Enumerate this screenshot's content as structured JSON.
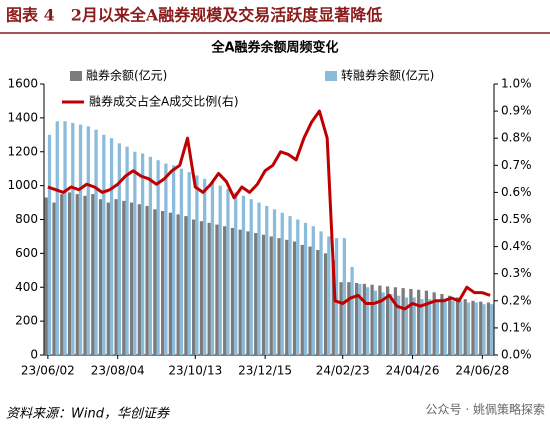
{
  "header": {
    "title": "图表 4　2月以来全A融券规模及交易活跃度显著降低"
  },
  "chart_data": {
    "type": "bar_line",
    "title": "全A融券余额周频变化",
    "categories": [
      "23/06/02",
      null,
      null,
      null,
      null,
      null,
      null,
      null,
      null,
      "23/08/04",
      null,
      null,
      null,
      null,
      null,
      null,
      null,
      null,
      null,
      "23/10/13",
      null,
      null,
      null,
      null,
      null,
      null,
      null,
      null,
      "23/12/15",
      null,
      null,
      null,
      null,
      null,
      null,
      null,
      null,
      null,
      "24/02/23",
      null,
      null,
      null,
      null,
      null,
      null,
      null,
      null,
      "24/04/26",
      null,
      null,
      null,
      null,
      null,
      null,
      null,
      null,
      "24/06/28",
      null
    ],
    "series": [
      {
        "name": "融券余额(亿元)",
        "color": "#7b7b7b",
        "kind": "bar",
        "values": [
          930,
          900,
          950,
          960,
          950,
          940,
          950,
          920,
          900,
          920,
          910,
          900,
          890,
          880,
          860,
          850,
          840,
          830,
          820,
          800,
          790,
          780,
          770,
          760,
          750,
          740,
          730,
          720,
          710,
          700,
          690,
          680,
          670,
          650,
          640,
          620,
          600,
          560,
          430,
          430,
          425,
          420,
          415,
          410,
          405,
          400,
          395,
          390,
          385,
          380,
          370,
          360,
          350,
          340,
          330,
          320,
          315,
          310
        ]
      },
      {
        "name": "转融券余额(亿元)",
        "color": "#8bbbdb",
        "kind": "bar",
        "values": [
          1300,
          1380,
          1380,
          1370,
          1360,
          1350,
          1330,
          1300,
          1280,
          1250,
          1230,
          1200,
          1190,
          1170,
          1150,
          1130,
          1120,
          1100,
          1080,
          1060,
          1040,
          1020,
          1000,
          980,
          960,
          940,
          920,
          900,
          880,
          860,
          840,
          820,
          800,
          780,
          760,
          730,
          700,
          690,
          690,
          520,
          420,
          400,
          380,
          370,
          360,
          350,
          340,
          340,
          330,
          330,
          320,
          320,
          320,
          320,
          310,
          310,
          300,
          300
        ]
      },
      {
        "name": "融券成交占全A成交比例(右)",
        "color": "#c00000",
        "kind": "line",
        "axis": "y2",
        "values": [
          0.62,
          0.61,
          0.6,
          0.62,
          0.61,
          0.63,
          0.62,
          0.6,
          0.61,
          0.63,
          0.66,
          0.68,
          0.66,
          0.65,
          0.63,
          0.65,
          0.68,
          0.7,
          0.8,
          0.62,
          0.6,
          0.63,
          0.67,
          0.64,
          0.58,
          0.62,
          0.6,
          0.63,
          0.68,
          0.7,
          0.75,
          0.74,
          0.72,
          0.8,
          0.86,
          0.9,
          0.8,
          0.2,
          0.19,
          0.21,
          0.22,
          0.19,
          0.19,
          0.2,
          0.22,
          0.18,
          0.17,
          0.19,
          0.18,
          0.19,
          0.2,
          0.2,
          0.21,
          0.2,
          0.25,
          0.23,
          0.23,
          0.22
        ]
      }
    ],
    "ylim": [
      0,
      1600
    ],
    "yticks": [
      0,
      200,
      400,
      600,
      800,
      1000,
      1200,
      1400,
      1600
    ],
    "y2lim": [
      0,
      1.0
    ],
    "y2ticks": [
      {
        "value": 0,
        "label": "0.0%"
      },
      {
        "value": 0.1,
        "label": "0.1%"
      },
      {
        "value": 0.2,
        "label": "0.2%"
      },
      {
        "value": 0.3,
        "label": "0.3%"
      },
      {
        "value": 0.4,
        "label": "0.4%"
      },
      {
        "value": 0.5,
        "label": "0.5%"
      },
      {
        "value": 0.6,
        "label": "0.6%"
      },
      {
        "value": 0.7,
        "label": "0.7%"
      },
      {
        "value": 0.8,
        "label": "0.8%"
      },
      {
        "value": 0.9,
        "label": "0.9%"
      },
      {
        "value": 1.0,
        "label": "1.0%"
      }
    ],
    "grid": false,
    "legend": "top-left"
  },
  "footer": {
    "source": "资料来源：Wind，华创证券",
    "watermark": "公众号 · 姚佩策略探索"
  }
}
